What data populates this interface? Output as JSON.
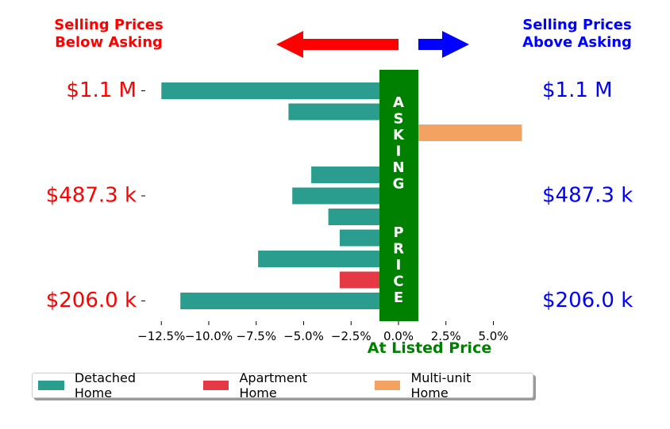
{
  "header": {
    "left_line1": "Selling Prices",
    "left_line2": "Below Asking",
    "right_line1": "Selling Prices",
    "right_line2": "Above Asking",
    "left_color": "#ff0000",
    "right_color": "#0000ff"
  },
  "chart_data": {
    "type": "bar",
    "orientation": "horizontal",
    "xlim": [
      -14.5,
      7.5
    ],
    "x_ticks": [
      -12.5,
      -10.0,
      -7.5,
      -5.0,
      -2.5,
      0.0,
      2.5,
      5.0
    ],
    "x_tick_labels": [
      "−12.5%",
      "−10.0%",
      "−7.5%",
      "−5.0%",
      "−2.5%",
      "0.0%",
      "2.5%",
      "5.0%"
    ],
    "xlabel": "At Listed Price",
    "xlabel_color": "#008000",
    "center_band_label": "ASKING  PRICE",
    "center_band_color": "#008000",
    "left_ticks": [
      {
        "label": "$1.1 M",
        "row": 0
      },
      {
        "label": "$487.3 k",
        "row": 5
      },
      {
        "label": "$206.0 k",
        "row": 10
      }
    ],
    "right_ticks": [
      {
        "label": "$1.1 M",
        "row": 0
      },
      {
        "label": "$487.3 k",
        "row": 5
      },
      {
        "label": "$206.0 k",
        "row": 10
      }
    ],
    "left_tick_color": "#ff0000",
    "right_tick_color": "#0000ff",
    "series": [
      {
        "name": "Detached Home",
        "color": "#2a9d8f"
      },
      {
        "name": "Apartment Home",
        "color": "#e63946"
      },
      {
        "name": "Multi-unit Home",
        "color": "#f4a261"
      }
    ],
    "bars": [
      {
        "row": 0,
        "value": -12.5,
        "series": "Detached Home"
      },
      {
        "row": 1,
        "value": -5.8,
        "series": "Detached Home"
      },
      {
        "row": 2,
        "value": 6.5,
        "series": "Multi-unit Home"
      },
      {
        "row": 4,
        "value": -4.6,
        "series": "Detached Home"
      },
      {
        "row": 5,
        "value": -5.6,
        "series": "Detached Home"
      },
      {
        "row": 6,
        "value": -3.7,
        "series": "Detached Home"
      },
      {
        "row": 7,
        "value": -3.1,
        "series": "Detached Home"
      },
      {
        "row": 8,
        "value": -7.4,
        "series": "Detached Home"
      },
      {
        "row": 9,
        "value": -3.1,
        "series": "Apartment Home"
      },
      {
        "row": 10,
        "value": -11.5,
        "series": "Detached Home"
      }
    ]
  }
}
